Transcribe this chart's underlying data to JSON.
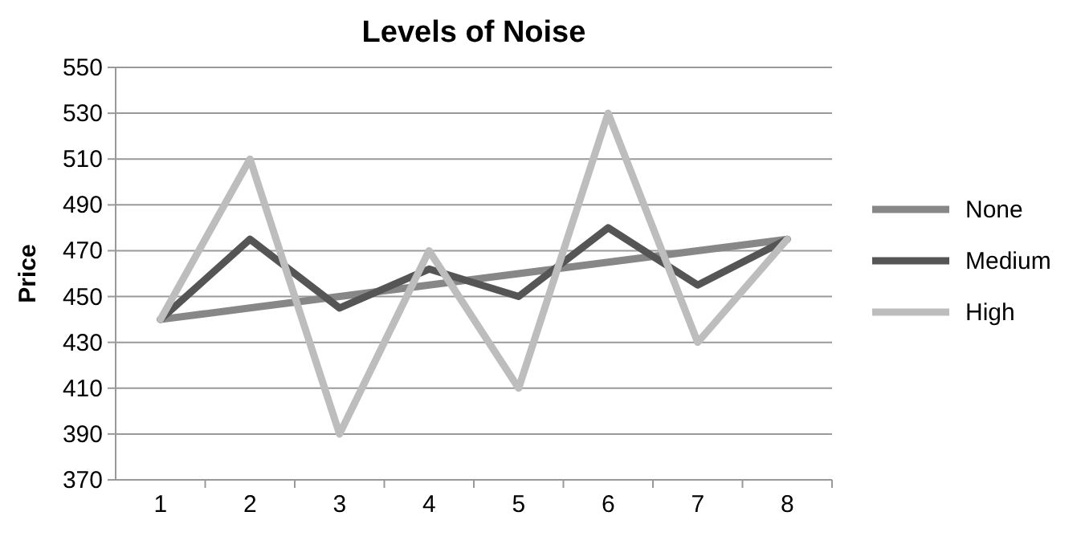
{
  "chart_data": {
    "type": "line",
    "title": "Levels of Noise",
    "ylabel": "Price",
    "categories": [
      "1",
      "2",
      "3",
      "4",
      "5",
      "6",
      "7",
      "8"
    ],
    "series": [
      {
        "name": "None",
        "color": "#878787",
        "values": [
          440,
          445,
          450,
          455,
          460,
          465,
          470,
          475
        ]
      },
      {
        "name": "Medium",
        "color": "#555555",
        "values": [
          440,
          475,
          445,
          462,
          450,
          480,
          455,
          475
        ]
      },
      {
        "name": "High",
        "color": "#bdbdbd",
        "values": [
          440,
          510,
          390,
          470,
          410,
          530,
          430,
          475
        ]
      }
    ],
    "ylim": [
      370,
      550
    ],
    "yticks": [
      370,
      390,
      410,
      430,
      450,
      470,
      490,
      510,
      530,
      550
    ],
    "grid": "y",
    "legend": "right",
    "marker": "none",
    "line_style": "solid"
  }
}
